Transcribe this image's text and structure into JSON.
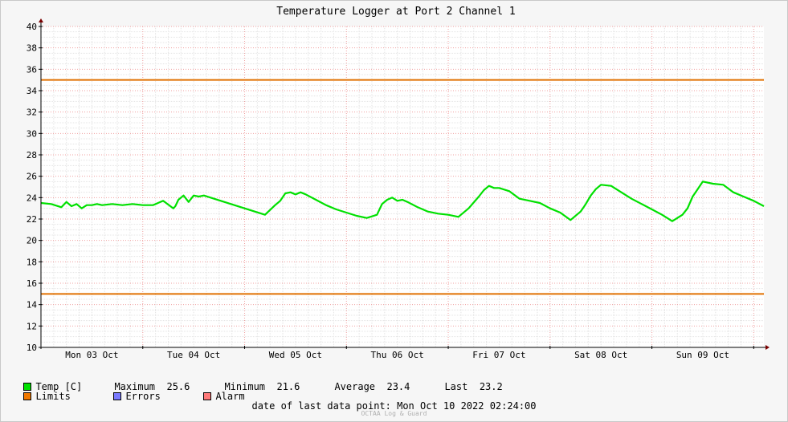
{
  "chart_data": {
    "type": "line",
    "title": "Temperature Logger at Port 2 Channel 1",
    "ylim": [
      10,
      40
    ],
    "yticks": [
      10,
      12,
      14,
      16,
      18,
      20,
      22,
      24,
      26,
      28,
      30,
      32,
      34,
      36,
      38,
      40
    ],
    "xlim": [
      0,
      7.1
    ],
    "xticks": [
      {
        "x": 0.5,
        "label": "Mon 03 Oct"
      },
      {
        "x": 1.5,
        "label": "Tue 04 Oct"
      },
      {
        "x": 2.5,
        "label": "Wed 05 Oct"
      },
      {
        "x": 3.5,
        "label": "Thu 06 Oct"
      },
      {
        "x": 4.5,
        "label": "Fri 07 Oct"
      },
      {
        "x": 5.5,
        "label": "Sat 08 Oct"
      },
      {
        "x": 6.5,
        "label": "Sun 09 Oct"
      }
    ],
    "grid": true,
    "limits": {
      "upper": 35,
      "lower": 15,
      "color": "#e07000"
    },
    "series": [
      {
        "name": "Temp [C]",
        "color": "#00e000",
        "x": [
          0,
          0.1,
          0.2,
          0.25,
          0.3,
          0.35,
          0.4,
          0.45,
          0.5,
          0.55,
          0.6,
          0.7,
          0.8,
          0.9,
          1.0,
          1.1,
          1.2,
          1.3,
          1.32,
          1.35,
          1.4,
          1.45,
          1.5,
          1.55,
          1.6,
          1.7,
          1.8,
          1.9,
          2.0,
          2.1,
          2.2,
          2.3,
          2.35,
          2.4,
          2.45,
          2.5,
          2.55,
          2.6,
          2.7,
          2.8,
          2.9,
          3.0,
          3.1,
          3.2,
          3.3,
          3.35,
          3.4,
          3.45,
          3.5,
          3.55,
          3.6,
          3.7,
          3.8,
          3.9,
          4.0,
          4.1,
          4.2,
          4.3,
          4.35,
          4.4,
          4.45,
          4.5,
          4.6,
          4.7,
          4.8,
          4.9,
          5.0,
          5.1,
          5.2,
          5.3,
          5.33,
          5.35,
          5.4,
          5.45,
          5.5,
          5.6,
          5.7,
          5.8,
          5.9,
          6.0,
          6.1,
          6.2,
          6.3,
          6.35,
          6.4,
          6.45,
          6.5,
          6.6,
          6.7,
          6.8,
          6.9,
          7.0,
          7.1
        ],
        "values": [
          23.5,
          23.4,
          23.1,
          23.6,
          23.2,
          23.4,
          23.0,
          23.3,
          23.3,
          23.4,
          23.3,
          23.4,
          23.3,
          23.4,
          23.3,
          23.3,
          23.7,
          23.0,
          23.2,
          23.8,
          24.2,
          23.6,
          24.2,
          24.1,
          24.2,
          23.9,
          23.6,
          23.3,
          23.0,
          22.7,
          22.4,
          23.3,
          23.7,
          24.4,
          24.5,
          24.3,
          24.5,
          24.3,
          23.8,
          23.3,
          22.9,
          22.6,
          22.3,
          22.1,
          22.4,
          23.4,
          23.8,
          24.0,
          23.7,
          23.8,
          23.6,
          23.1,
          22.7,
          22.5,
          22.4,
          22.2,
          23.0,
          24.1,
          24.7,
          25.1,
          24.9,
          24.9,
          24.6,
          23.9,
          23.7,
          23.5,
          23.0,
          22.6,
          21.9,
          22.7,
          23.1,
          23.4,
          24.2,
          24.8,
          25.2,
          25.1,
          24.5,
          23.9,
          23.4,
          22.9,
          22.4,
          21.8,
          22.4,
          23.0,
          24.1,
          24.8,
          25.5,
          25.3,
          25.2,
          24.5,
          24.1,
          23.7,
          23.2
        ]
      }
    ]
  },
  "legend": {
    "temp_label": "Temp [C]",
    "temp_color": "#00e000",
    "maximum_label": "Maximum",
    "maximum_value": "25.6",
    "minimum_label": "Minimum",
    "minimum_value": "21.6",
    "average_label": "Average",
    "average_value": "23.4",
    "last_label": "Last",
    "last_value": "23.2",
    "limits_label": "Limits",
    "limits_color": "#f07800",
    "errors_label": "Errors",
    "errors_color": "#7a7aff",
    "alarm_label": "Alarm",
    "alarm_color": "#ff7a7a"
  },
  "footer": {
    "last_point_label": "date of last data point:",
    "last_point_value": "Mon Oct 10 2022 02:24:00",
    "credit": "OCTAA Log & Guard"
  }
}
